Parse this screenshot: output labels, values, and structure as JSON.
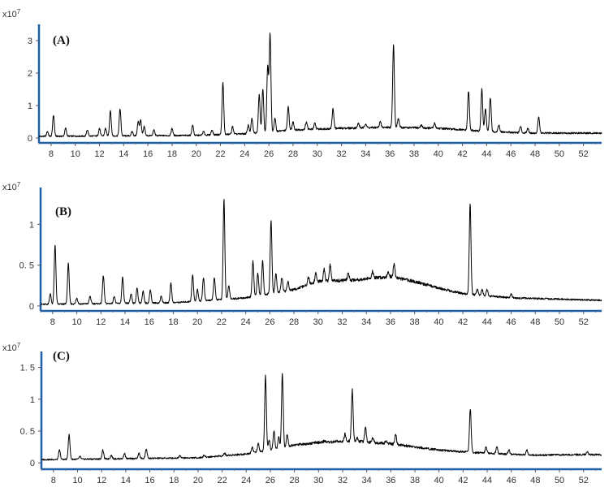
{
  "chart_data": [
    {
      "type": "line",
      "panel_label": "(A)",
      "scale_label": "x10",
      "scale_exponent": "7",
      "x_ticks": [
        "8",
        "10",
        "12",
        "14",
        "16",
        "18",
        "20",
        "22",
        "24",
        "26",
        "28",
        "30",
        "32",
        "34",
        "36",
        "38",
        "40",
        "42",
        "44",
        "46",
        "48",
        "50",
        "52"
      ],
      "y_ticks": [
        "0",
        "1",
        "2",
        "3"
      ],
      "xlim": [
        7,
        53.5
      ],
      "ylim": [
        -0.15,
        3.5
      ],
      "baseline": [
        [
          7,
          0.05
        ],
        [
          20,
          0.08
        ],
        [
          24,
          0.13
        ],
        [
          28,
          0.25
        ],
        [
          32,
          0.3
        ],
        [
          36,
          0.33
        ],
        [
          40,
          0.3
        ],
        [
          44,
          0.2
        ],
        [
          48,
          0.15
        ],
        [
          53.5,
          0.15
        ]
      ],
      "peaks": [
        [
          7.7,
          0.2
        ],
        [
          8.2,
          0.7
        ],
        [
          9.2,
          0.3
        ],
        [
          11.0,
          0.25
        ],
        [
          12.0,
          0.3
        ],
        [
          12.5,
          0.3
        ],
        [
          12.9,
          0.85
        ],
        [
          13.7,
          0.9
        ],
        [
          14.7,
          0.2
        ],
        [
          15.2,
          0.5
        ],
        [
          15.4,
          0.55
        ],
        [
          15.7,
          0.35
        ],
        [
          16.5,
          0.25
        ],
        [
          18.0,
          0.3
        ],
        [
          19.7,
          0.4
        ],
        [
          20.6,
          0.2
        ],
        [
          21.3,
          0.25
        ],
        [
          22.2,
          1.7
        ],
        [
          23.0,
          0.35
        ],
        [
          24.3,
          0.4
        ],
        [
          24.6,
          0.6
        ],
        [
          25.2,
          1.35
        ],
        [
          25.5,
          1.5
        ],
        [
          25.9,
          2.2
        ],
        [
          26.1,
          3.2
        ],
        [
          26.5,
          0.6
        ],
        [
          27.6,
          0.95
        ],
        [
          28.0,
          0.5
        ],
        [
          29.1,
          0.5
        ],
        [
          29.8,
          0.45
        ],
        [
          31.3,
          0.9
        ],
        [
          33.4,
          0.45
        ],
        [
          34.0,
          0.45
        ],
        [
          35.2,
          0.5
        ],
        [
          36.3,
          2.9
        ],
        [
          36.7,
          0.6
        ],
        [
          38.6,
          0.4
        ],
        [
          39.7,
          0.45
        ],
        [
          42.5,
          1.45
        ],
        [
          43.6,
          1.5
        ],
        [
          43.9,
          0.9
        ],
        [
          44.3,
          1.25
        ],
        [
          45.0,
          0.4
        ],
        [
          46.8,
          0.35
        ],
        [
          47.4,
          0.3
        ],
        [
          48.3,
          0.65
        ]
      ]
    },
    {
      "type": "line",
      "panel_label": "(B)",
      "scale_label": "x10",
      "scale_exponent": "7",
      "x_ticks": [
        "8",
        "10",
        "12",
        "14",
        "16",
        "18",
        "20",
        "22",
        "24",
        "26",
        "28",
        "30",
        "32",
        "34",
        "36",
        "38",
        "40",
        "42",
        "44",
        "46",
        "48",
        "50",
        "52"
      ],
      "y_ticks": [
        "0",
        "0. 5",
        "1"
      ],
      "xlim": [
        7,
        53.5
      ],
      "ylim": [
        -0.06,
        1.45
      ],
      "baseline": [
        [
          7,
          0.02
        ],
        [
          18,
          0.04
        ],
        [
          24,
          0.1
        ],
        [
          28,
          0.2
        ],
        [
          30,
          0.3
        ],
        [
          33,
          0.32
        ],
        [
          36,
          0.36
        ],
        [
          38,
          0.3
        ],
        [
          40,
          0.22
        ],
        [
          42,
          0.15
        ],
        [
          46,
          0.1
        ],
        [
          53.5,
          0.07
        ]
      ],
      "peaks": [
        [
          7.8,
          0.15
        ],
        [
          8.2,
          0.75
        ],
        [
          9.3,
          0.52
        ],
        [
          10.0,
          0.1
        ],
        [
          11.1,
          0.12
        ],
        [
          12.2,
          0.37
        ],
        [
          13.1,
          0.12
        ],
        [
          13.8,
          0.35
        ],
        [
          14.5,
          0.15
        ],
        [
          15.0,
          0.22
        ],
        [
          15.5,
          0.18
        ],
        [
          16.1,
          0.2
        ],
        [
          17.0,
          0.12
        ],
        [
          17.8,
          0.28
        ],
        [
          19.6,
          0.38
        ],
        [
          20.0,
          0.2
        ],
        [
          20.5,
          0.35
        ],
        [
          21.4,
          0.35
        ],
        [
          22.2,
          1.3
        ],
        [
          22.6,
          0.25
        ],
        [
          24.6,
          0.55
        ],
        [
          25.0,
          0.4
        ],
        [
          25.4,
          0.55
        ],
        [
          26.1,
          1.05
        ],
        [
          26.5,
          0.4
        ],
        [
          27.0,
          0.35
        ],
        [
          27.5,
          0.3
        ],
        [
          29.2,
          0.35
        ],
        [
          29.8,
          0.4
        ],
        [
          30.5,
          0.45
        ],
        [
          31.0,
          0.5
        ],
        [
          32.5,
          0.4
        ],
        [
          34.5,
          0.42
        ],
        [
          35.8,
          0.42
        ],
        [
          36.3,
          0.52
        ],
        [
          42.6,
          1.25
        ],
        [
          43.2,
          0.2
        ],
        [
          43.6,
          0.2
        ],
        [
          44.0,
          0.2
        ],
        [
          46.0,
          0.15
        ]
      ]
    },
    {
      "type": "line",
      "panel_label": "(C)",
      "scale_label": "x10",
      "scale_exponent": "7",
      "x_ticks": [
        "8",
        "10",
        "12",
        "14",
        "16",
        "18",
        "20",
        "22",
        "24",
        "26",
        "28",
        "30",
        "32",
        "34",
        "36",
        "38",
        "40",
        "42",
        "44",
        "46",
        "48",
        "50",
        "52"
      ],
      "y_ticks": [
        "0",
        "0. 5",
        "1",
        "1. 5"
      ],
      "xlim": [
        7,
        53.5
      ],
      "ylim": [
        -0.1,
        1.75
      ],
      "baseline": [
        [
          7,
          0.05
        ],
        [
          20,
          0.08
        ],
        [
          24,
          0.14
        ],
        [
          26,
          0.2
        ],
        [
          28,
          0.28
        ],
        [
          30,
          0.32
        ],
        [
          33,
          0.34
        ],
        [
          36,
          0.3
        ],
        [
          40,
          0.2
        ],
        [
          44,
          0.15
        ],
        [
          48,
          0.12
        ],
        [
          52,
          0.13
        ],
        [
          53.5,
          0.13
        ]
      ],
      "peaks": [
        [
          8.5,
          0.2
        ],
        [
          9.3,
          0.45
        ],
        [
          10.2,
          0.1
        ],
        [
          12.1,
          0.2
        ],
        [
          12.8,
          0.12
        ],
        [
          13.9,
          0.15
        ],
        [
          15.1,
          0.15
        ],
        [
          15.7,
          0.22
        ],
        [
          18.5,
          0.12
        ],
        [
          20.5,
          0.12
        ],
        [
          22.2,
          0.15
        ],
        [
          24.5,
          0.25
        ],
        [
          25.0,
          0.3
        ],
        [
          25.6,
          1.37
        ],
        [
          25.9,
          0.35
        ],
        [
          26.3,
          0.5
        ],
        [
          26.7,
          0.4
        ],
        [
          27.0,
          1.4
        ],
        [
          27.4,
          0.45
        ],
        [
          28.5,
          0.3
        ],
        [
          30.5,
          0.35
        ],
        [
          31.5,
          0.35
        ],
        [
          32.2,
          0.45
        ],
        [
          32.8,
          1.15
        ],
        [
          33.2,
          0.4
        ],
        [
          33.9,
          0.55
        ],
        [
          34.5,
          0.4
        ],
        [
          35.6,
          0.35
        ],
        [
          36.4,
          0.45
        ],
        [
          42.6,
          0.85
        ],
        [
          43.9,
          0.25
        ],
        [
          44.8,
          0.25
        ],
        [
          45.8,
          0.2
        ],
        [
          47.3,
          0.2
        ],
        [
          52.3,
          0.18
        ]
      ]
    }
  ]
}
